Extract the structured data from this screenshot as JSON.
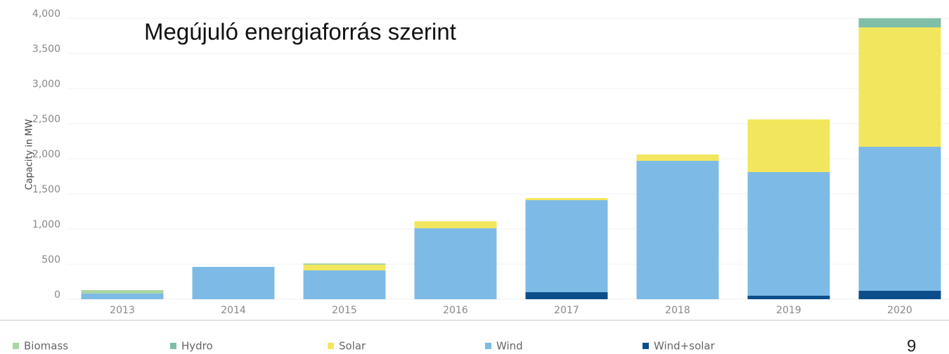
{
  "chart_data": {
    "type": "stacked_bar",
    "title": "Megújuló energiaforrás szerint",
    "y_label": "Capacity in MW",
    "categories": [
      "2013",
      "2014",
      "2015",
      "2016",
      "2017",
      "2018",
      "2019",
      "2020"
    ],
    "series": [
      {
        "name": "Biomass",
        "color": "#a9d6a4",
        "values": [
          50,
          0,
          20,
          0,
          0,
          0,
          0,
          0
        ]
      },
      {
        "name": "Hydro",
        "color": "#7fbfa8",
        "values": [
          0,
          0,
          0,
          0,
          0,
          0,
          0,
          130
        ]
      },
      {
        "name": "Solar",
        "color": "#f2e65e",
        "values": [
          0,
          0,
          80,
          100,
          30,
          90,
          750,
          1700
        ]
      },
      {
        "name": "Wind",
        "color": "#7dbbe6",
        "values": [
          80,
          460,
          410,
          1010,
          1310,
          1970,
          1760,
          2050
        ]
      },
      {
        "name": "Wind+solar",
        "color": "#0d4e8a",
        "values": [
          0,
          0,
          0,
          0,
          100,
          0,
          50,
          120
        ]
      }
    ],
    "ylim": [
      0,
      4000
    ],
    "yticks": [
      0,
      500,
      {
        "value": 1000,
        "label": "1,000"
      },
      {
        "value": 1500,
        "label": "1,500"
      },
      {
        "value": 2000,
        "label": "2,000"
      },
      {
        "value": 2500,
        "label": "2,500"
      },
      {
        "value": 3000,
        "label": "3,000"
      },
      {
        "value": 3500,
        "label": "3,500"
      },
      {
        "value": 4000,
        "label": "4,000"
      }
    ],
    "grid": true,
    "legend": "bottom",
    "page_number": "9"
  }
}
